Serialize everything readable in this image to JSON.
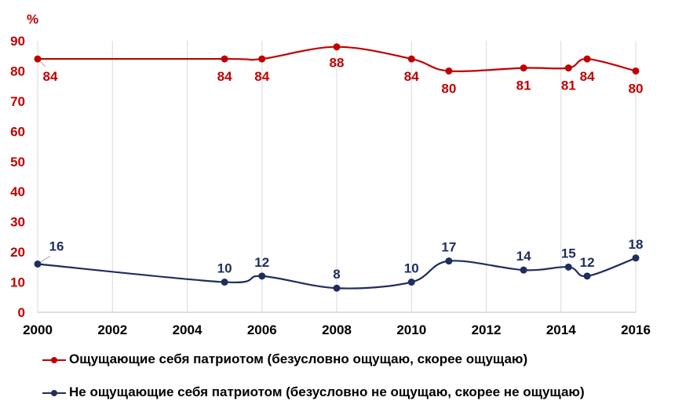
{
  "chart_data": {
    "type": "line",
    "ylabel": "%",
    "ylim": [
      0,
      90
    ],
    "xlim": [
      2000,
      2016
    ],
    "xticks": [
      "2000",
      "2002",
      "2004",
      "2006",
      "2008",
      "2010",
      "2012",
      "2014",
      "2016"
    ],
    "yticks": [
      "0",
      "10",
      "20",
      "30",
      "40",
      "50",
      "60",
      "70",
      "80",
      "90"
    ],
    "grid": "vertical",
    "legend_position": "bottom",
    "series": [
      {
        "name": "Ощущающие себя патриотом (безусловно ощущаю, скорее ощущаю)",
        "color": "#c00000",
        "x": [
          2000,
          2005,
          2006,
          2008,
          2010,
          2011,
          2013,
          2014.2,
          2014.7,
          2016
        ],
        "values": [
          84,
          84,
          84,
          88,
          84,
          80,
          81,
          81,
          84,
          80
        ],
        "labels": [
          "84",
          "84",
          "84",
          "88",
          "84",
          "80",
          "81",
          "81",
          "84",
          "80"
        ]
      },
      {
        "name": "Не ощущающие себя патриотом (безусловно не ощущаю, скорее не ощущаю)",
        "color": "#1f2d5f",
        "x": [
          2000,
          2005,
          2006,
          2008,
          2010,
          2011,
          2013,
          2014.2,
          2014.7,
          2016
        ],
        "values": [
          16,
          10,
          12,
          8,
          10,
          17,
          14,
          15,
          12,
          18
        ],
        "labels": [
          "16",
          "10",
          "12",
          "8",
          "10",
          "17",
          "14",
          "15",
          "12",
          "18"
        ]
      }
    ]
  }
}
